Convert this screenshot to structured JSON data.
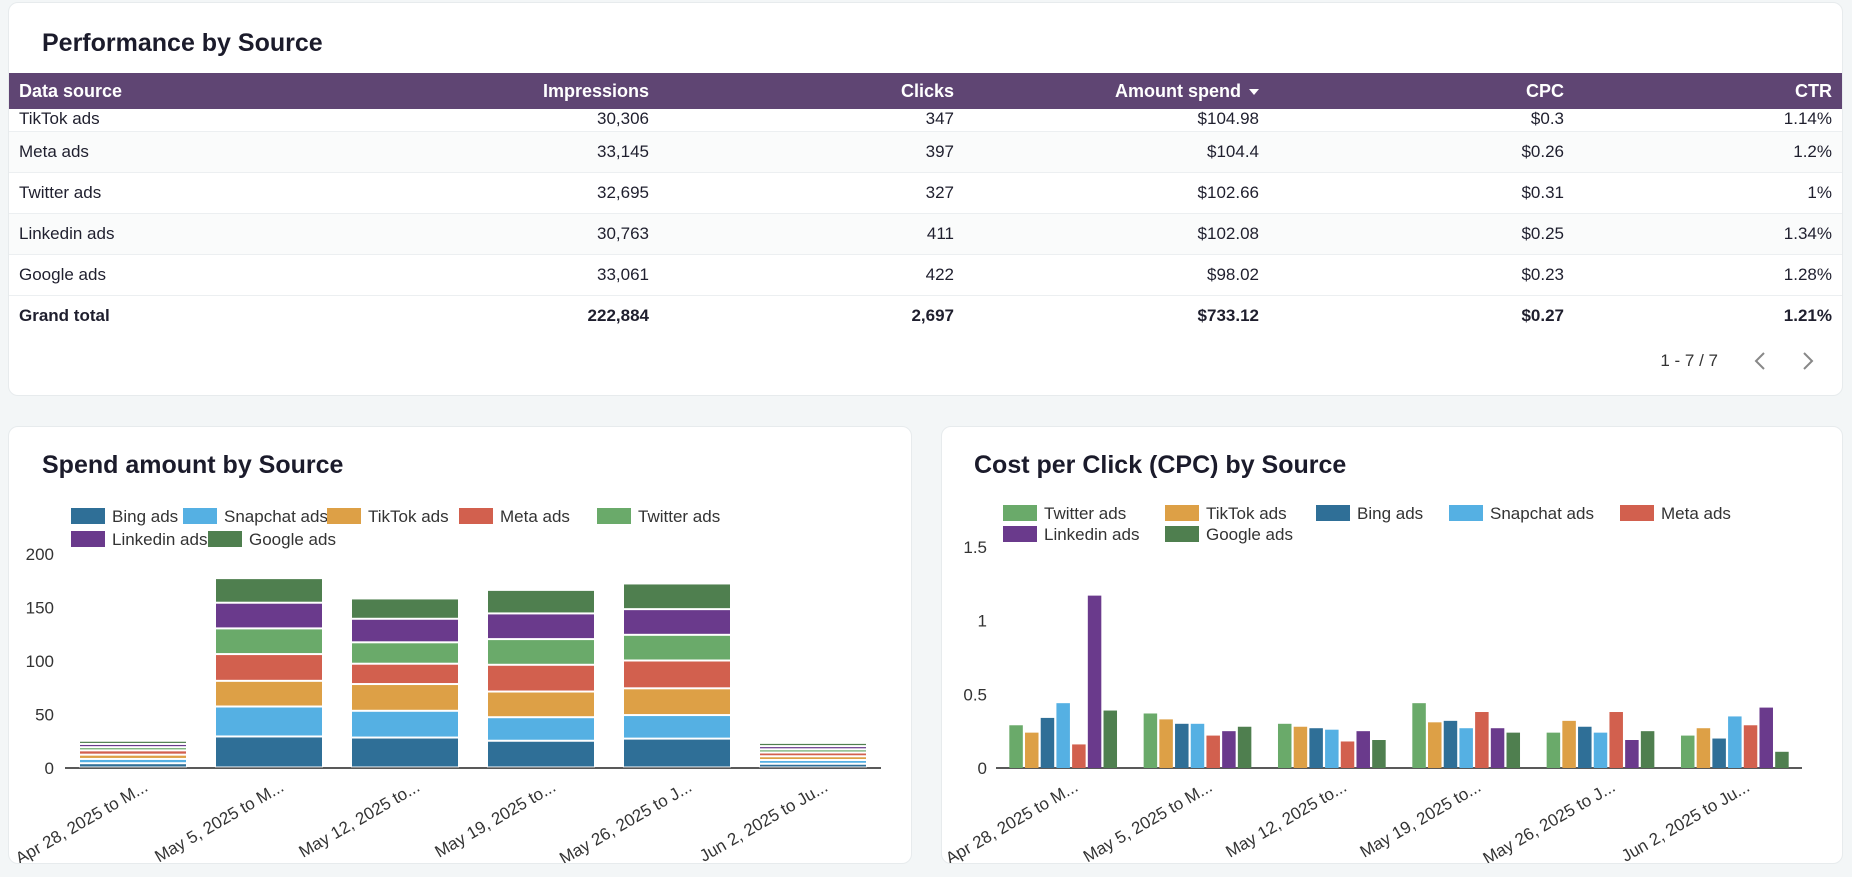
{
  "perf": {
    "title": "Performance by Source",
    "columns": {
      "source": "Data source",
      "impressions": "Impressions",
      "clicks": "Clicks",
      "amount": "Amount spend",
      "cpc": "CPC",
      "ctr": "CTR"
    },
    "rows": [
      {
        "source": "TikTok ads",
        "impressions": "30,306",
        "clicks": "347",
        "amount": "$104.98",
        "cpc": "$0.3",
        "ctr": "1.14%"
      },
      {
        "source": "Meta ads",
        "impressions": "33,145",
        "clicks": "397",
        "amount": "$104.4",
        "cpc": "$0.26",
        "ctr": "1.2%"
      },
      {
        "source": "Twitter ads",
        "impressions": "32,695",
        "clicks": "327",
        "amount": "$102.66",
        "cpc": "$0.31",
        "ctr": "1%"
      },
      {
        "source": "Linkedin ads",
        "impressions": "30,763",
        "clicks": "411",
        "amount": "$102.08",
        "cpc": "$0.25",
        "ctr": "1.34%"
      },
      {
        "source": "Google ads",
        "impressions": "33,061",
        "clicks": "422",
        "amount": "$98.02",
        "cpc": "$0.23",
        "ctr": "1.28%"
      }
    ],
    "total": {
      "source": "Grand total",
      "impressions": "222,884",
      "clicks": "2,697",
      "amount": "$733.12",
      "cpc": "$0.27",
      "ctr": "1.21%"
    },
    "pagination": "1 - 7 / 7"
  },
  "colors": {
    "header_bg": "#5f4573",
    "Bing ads": "#2f6f97",
    "Snapchat ads": "#55b0e3",
    "TikTok ads": "#dda046",
    "Meta ads": "#d2604e",
    "Twitter ads": "#6aaa6a",
    "Linkedin ads": "#6a3a8c",
    "Google ads": "#4f7f4f"
  },
  "chart_data": [
    {
      "id": "spend",
      "type": "bar",
      "stacked": true,
      "title": "Spend amount by Source",
      "categories": [
        "Apr 28, 2025 to M...",
        "May 5, 2025 to M...",
        "May 12, 2025 to...",
        "May 19, 2025 to...",
        "May 26, 2025 to J...",
        "Jun 2, 2025 to Ju..."
      ],
      "series": [
        {
          "name": "Bing ads",
          "values": [
            4,
            29,
            28,
            25,
            27,
            3.5
          ]
        },
        {
          "name": "Snapchat ads",
          "values": [
            4,
            28,
            25,
            22,
            22,
            3.5
          ]
        },
        {
          "name": "TikTok ads",
          "values": [
            4,
            24,
            25,
            24,
            25,
            3.5
          ]
        },
        {
          "name": "Meta ads",
          "values": [
            4,
            25,
            19,
            25,
            26,
            3.5
          ]
        },
        {
          "name": "Twitter ads",
          "values": [
            3,
            24,
            20,
            24,
            24,
            3
          ]
        },
        {
          "name": "Linkedin ads",
          "values": [
            3,
            24,
            22,
            24,
            24,
            3
          ]
        },
        {
          "name": "Google ads",
          "values": [
            3,
            23,
            19,
            22,
            24,
            3
          ]
        }
      ],
      "yticks": [
        0,
        50,
        100,
        150,
        200
      ],
      "ylim": [
        0,
        200
      ]
    },
    {
      "id": "cpc",
      "type": "bar",
      "stacked": false,
      "title": "Cost per Click (CPC) by Source",
      "categories": [
        "Apr 28, 2025 to M...",
        "May 5, 2025 to M...",
        "May 12, 2025 to...",
        "May 19, 2025 to...",
        "May 26, 2025 to J...",
        "Jun 2, 2025 to Ju..."
      ],
      "series": [
        {
          "name": "Twitter ads",
          "values": [
            0.29,
            0.37,
            0.3,
            0.44,
            0.24,
            0.22
          ]
        },
        {
          "name": "TikTok ads",
          "values": [
            0.24,
            0.33,
            0.28,
            0.31,
            0.32,
            0.27
          ]
        },
        {
          "name": "Bing ads",
          "values": [
            0.34,
            0.3,
            0.27,
            0.32,
            0.28,
            0.2
          ]
        },
        {
          "name": "Snapchat ads",
          "values": [
            0.44,
            0.3,
            0.26,
            0.27,
            0.24,
            0.35
          ]
        },
        {
          "name": "Meta ads",
          "values": [
            0.16,
            0.22,
            0.18,
            0.38,
            0.38,
            0.29
          ]
        },
        {
          "name": "Linkedin ads",
          "values": [
            1.17,
            0.25,
            0.25,
            0.27,
            0.19,
            0.41
          ]
        },
        {
          "name": "Google ads",
          "values": [
            0.39,
            0.28,
            0.19,
            0.24,
            0.25,
            0.11
          ]
        }
      ],
      "yticks": [
        0,
        0.5,
        1,
        1.5
      ],
      "ylim": [
        0,
        1.5
      ]
    }
  ]
}
